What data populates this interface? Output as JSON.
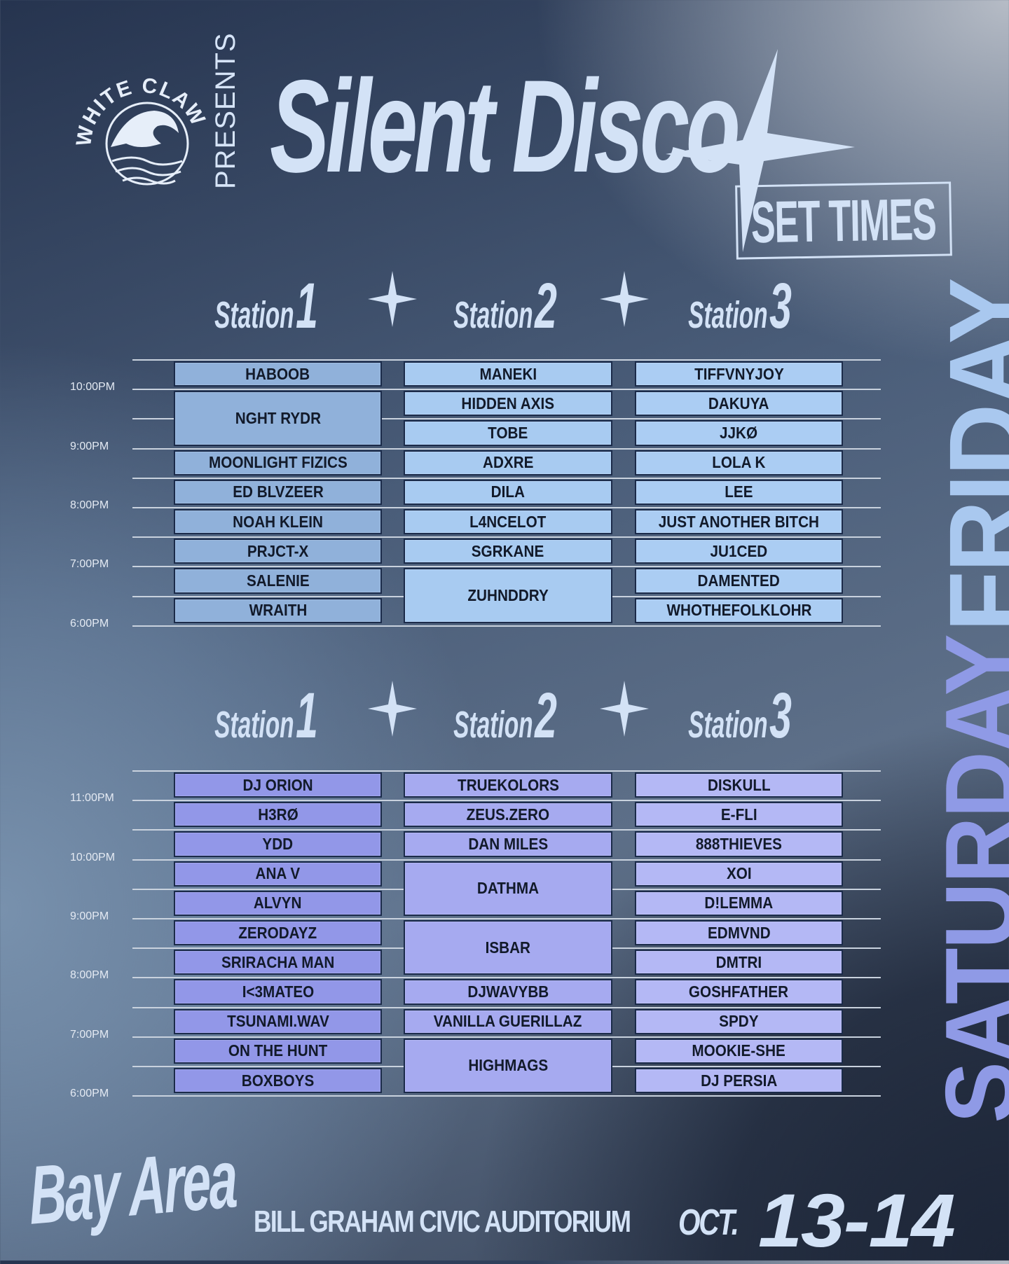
{
  "header": {
    "logo_text": "WHITE CLAW",
    "presents": "PRESENTS",
    "title": "Silent Disco",
    "subtitle": "SET TIMES"
  },
  "stations": [
    {
      "word": "Station",
      "num": "1"
    },
    {
      "word": "Station",
      "num": "2"
    },
    {
      "word": "Station",
      "num": "3"
    }
  ],
  "days": [
    {
      "label": "FRIDAY",
      "color": "#a9c8ef",
      "times": [
        "10:00PM",
        "9:00PM",
        "8:00PM",
        "7:00PM",
        "6:00PM"
      ],
      "columns": [
        {
          "color": "#90b1da",
          "sets": [
            {
              "name": "HABOOB",
              "slots": 1
            },
            {
              "name": "NGHT RYDR",
              "slots": 2
            },
            {
              "name": "MOONLIGHT FIZICS",
              "slots": 1
            },
            {
              "name": "ED BLVZEER",
              "slots": 1
            },
            {
              "name": "NOAH KLEIN",
              "slots": 1
            },
            {
              "name": "PRJCT-X",
              "slots": 1
            },
            {
              "name": "SALENIE",
              "slots": 1
            },
            {
              "name": "WRAITH",
              "slots": 1
            }
          ]
        },
        {
          "color": "#a8cbf1",
          "sets": [
            {
              "name": "MANEKI",
              "slots": 1
            },
            {
              "name": "HIDDEN AXIS",
              "slots": 1
            },
            {
              "name": "TOBE",
              "slots": 1
            },
            {
              "name": "ADXRE",
              "slots": 1
            },
            {
              "name": "DILA",
              "slots": 1
            },
            {
              "name": "L4NCELOT",
              "slots": 1
            },
            {
              "name": "SGRKANE",
              "slots": 1
            },
            {
              "name": "ZUHNDDRY",
              "slots": 2
            }
          ]
        },
        {
          "color": "#abcdf3",
          "sets": [
            {
              "name": "TIFFVNYJOY",
              "slots": 1
            },
            {
              "name": "DAKUYA",
              "slots": 1
            },
            {
              "name": "JJKØ",
              "slots": 1
            },
            {
              "name": "LOLA K",
              "slots": 1
            },
            {
              "name": "LEE",
              "slots": 1
            },
            {
              "name": "JUST ANOTHER BITCH",
              "slots": 1
            },
            {
              "name": "JU1CED",
              "slots": 1
            },
            {
              "name": "DAMENTED",
              "slots": 1
            },
            {
              "name": "WHOTHEFOLKLOHR",
              "slots": 1
            }
          ]
        }
      ]
    },
    {
      "label": "SATURDAY",
      "color": "#8f9ae6",
      "times": [
        "11:00PM",
        "10:00PM",
        "9:00PM",
        "8:00PM",
        "7:00PM",
        "6:00PM"
      ],
      "columns": [
        {
          "color": "#9297e8",
          "sets": [
            {
              "name": "DJ ORION",
              "slots": 1
            },
            {
              "name": "H3RØ",
              "slots": 1
            },
            {
              "name": "YDD",
              "slots": 1
            },
            {
              "name": "ANA V",
              "slots": 1
            },
            {
              "name": "ALVYN",
              "slots": 1
            },
            {
              "name": "ZERODAYZ",
              "slots": 1
            },
            {
              "name": "SRIRACHA MAN",
              "slots": 1
            },
            {
              "name": "I<3MATEO",
              "slots": 1
            },
            {
              "name": "TSUNAMI.WAV",
              "slots": 1
            },
            {
              "name": "ON THE HUNT",
              "slots": 1
            },
            {
              "name": "BOXBOYS",
              "slots": 1
            }
          ]
        },
        {
          "color": "#a6aaf0",
          "sets": [
            {
              "name": "TRUEKOLORS",
              "slots": 1
            },
            {
              "name": "ZEUS.ZERO",
              "slots": 1
            },
            {
              "name": "DAN MILES",
              "slots": 1
            },
            {
              "name": "DATHMA",
              "slots": 2
            },
            {
              "name": "ISBAR",
              "slots": 2
            },
            {
              "name": "DJWAVYBB",
              "slots": 1
            },
            {
              "name": "VANILLA GUERILLAZ",
              "slots": 1
            },
            {
              "name": "HIGHMAGS",
              "slots": 2
            }
          ]
        },
        {
          "color": "#b4b8f5",
          "sets": [
            {
              "name": "DISKULL",
              "slots": 1
            },
            {
              "name": "E-FLI",
              "slots": 1
            },
            {
              "name": "888THIEVES",
              "slots": 1
            },
            {
              "name": "XOI",
              "slots": 1
            },
            {
              "name": "D!LEMMA",
              "slots": 1
            },
            {
              "name": "EDMVND",
              "slots": 1
            },
            {
              "name": "DMTRI",
              "slots": 1
            },
            {
              "name": "GOSHFATHER",
              "slots": 1
            },
            {
              "name": "SPDY",
              "slots": 1
            },
            {
              "name": "MOOKIE-SHE",
              "slots": 1
            },
            {
              "name": "DJ PERSIA",
              "slots": 1
            }
          ]
        }
      ]
    }
  ],
  "footer": {
    "city": "Bay Area",
    "venue": "BILL GRAHAM CIVIC AUDITORIUM",
    "month": "OCT.",
    "dates": "13-14"
  }
}
